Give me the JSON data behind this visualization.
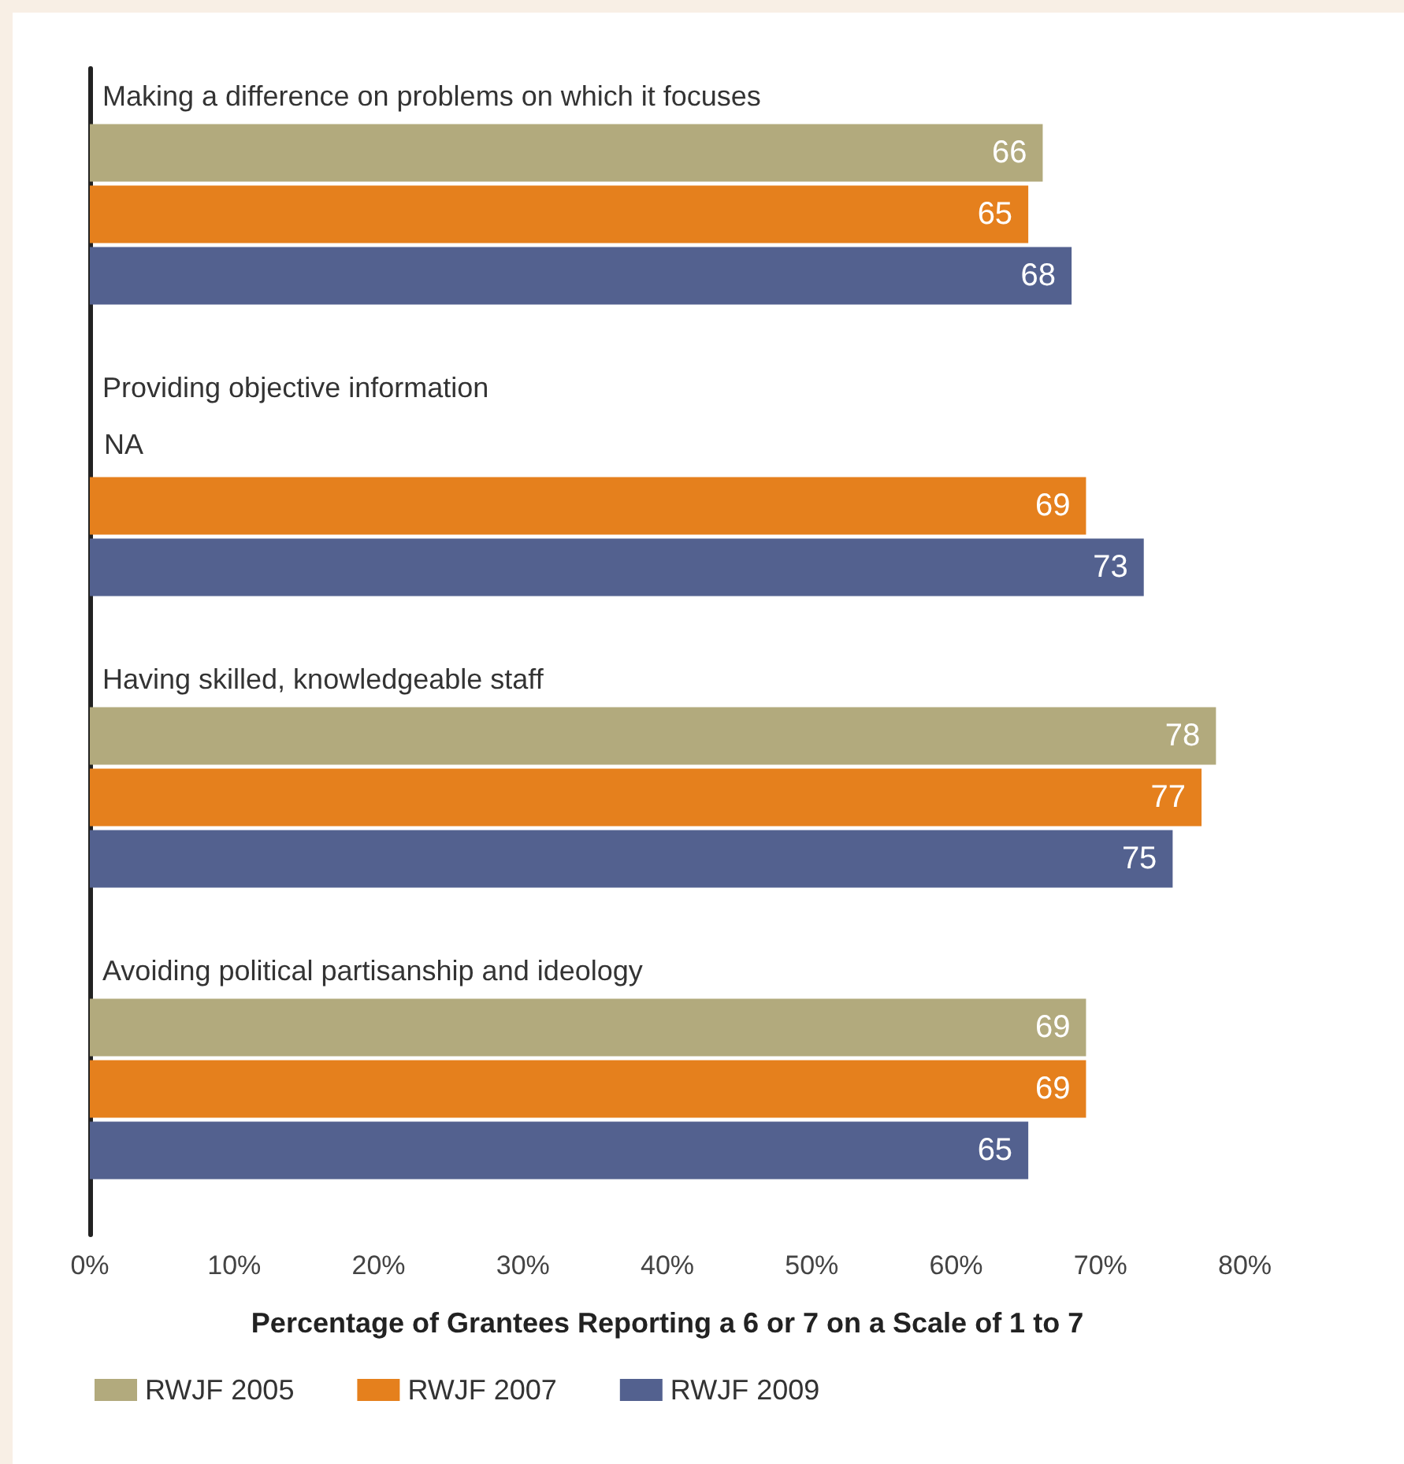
{
  "chart_data": {
    "type": "bar",
    "orientation": "horizontal",
    "categories": [
      "Making a difference on problems on which it focuses",
      "Providing objective information",
      "Having skilled, knowledgeable staff",
      "Avoiding political partisanship and ideology"
    ],
    "series": [
      {
        "name": "RWJF 2005",
        "color": "#b2aa7d",
        "values": [
          66,
          null,
          78,
          69
        ]
      },
      {
        "name": "RWJF 2007",
        "color": "#e5801d",
        "values": [
          65,
          69,
          77,
          69
        ]
      },
      {
        "name": "RWJF 2009",
        "color": "#53618f",
        "values": [
          68,
          73,
          75,
          65
        ]
      }
    ],
    "xlabel": "Percentage of Grantees Reporting a 6 or 7 on a Scale of 1 to 7",
    "xlim": [
      0,
      80
    ],
    "xticks": [
      {
        "value": 0,
        "label": "0%"
      },
      {
        "value": 10,
        "label": "10%"
      },
      {
        "value": 20,
        "label": "20%"
      },
      {
        "value": 30,
        "label": "30%"
      },
      {
        "value": 40,
        "label": "40%"
      },
      {
        "value": 50,
        "label": "50%"
      },
      {
        "value": 60,
        "label": "60%"
      },
      {
        "value": 70,
        "label": "70%"
      },
      {
        "value": 80,
        "label": "80%"
      }
    ],
    "data_labels": true,
    "grid": false,
    "legend": "bottom left",
    "annotations": [
      {
        "text": "NA",
        "x": 0,
        "y": "Providing objective information"
      }
    ]
  }
}
